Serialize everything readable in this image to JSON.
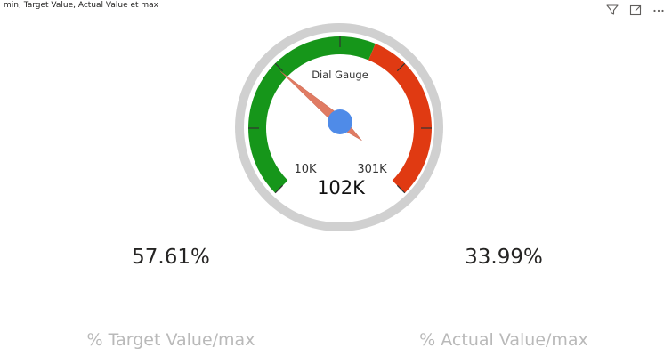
{
  "visual": {
    "title": "min, Target Value, Actual Value et max"
  },
  "toolbar": {
    "icons": [
      "filter-icon",
      "focus-mode-icon",
      "more-options-icon"
    ]
  },
  "gauge": {
    "title": "Dial Gauge",
    "min_label": "10K",
    "max_label": "301K",
    "value_label": "102K",
    "min": 10000,
    "max": 301000,
    "value": 102000,
    "bands": [
      {
        "from": 10000,
        "to": 180000,
        "color": "#16961a"
      },
      {
        "from": 180000,
        "to": 301000,
        "color": "#e03a12"
      }
    ],
    "colors": {
      "rim": "#d0d0d0",
      "needle": "#e07b63",
      "hub": "#4f8be8"
    }
  },
  "kpis": {
    "target": {
      "value": "57.61%",
      "label": "% Target Value/max"
    },
    "actual": {
      "value": "33.99%",
      "label": "% Actual Value/max"
    }
  }
}
